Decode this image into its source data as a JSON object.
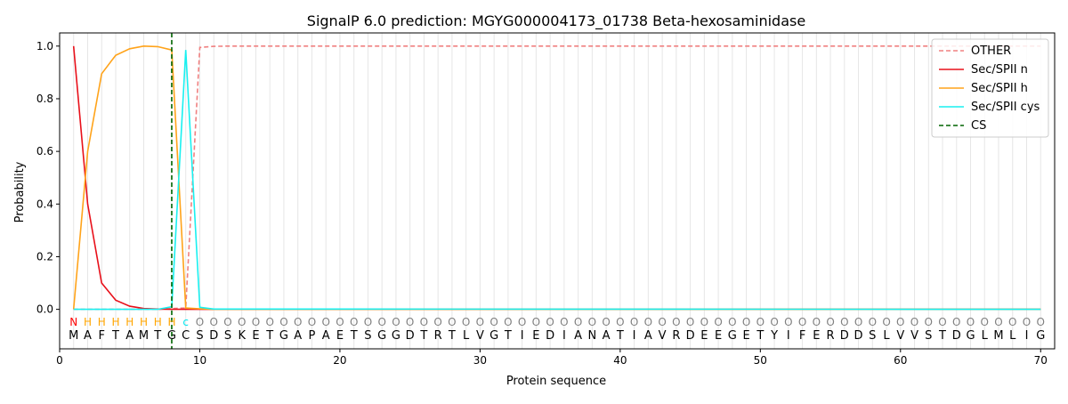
{
  "chart_data": {
    "type": "line",
    "title": "SignalP 6.0 prediction: MGYG000004173_01738 Beta-hexosaminidase",
    "xlabel": "Protein sequence",
    "ylabel": "Probability",
    "xlim": [
      0,
      71
    ],
    "ylim": [
      -0.15,
      1.05
    ],
    "xticks": [
      0,
      10,
      20,
      30,
      40,
      50,
      60,
      70
    ],
    "yticks": [
      0.0,
      0.2,
      0.4,
      0.6,
      0.8,
      1.0
    ],
    "legend_position": "top-right",
    "sequence": [
      "M",
      "A",
      "F",
      "T",
      "A",
      "M",
      "T",
      "G",
      "C",
      "S",
      "D",
      "S",
      "K",
      "E",
      "T",
      "G",
      "A",
      "P",
      "A",
      "E",
      "T",
      "S",
      "G",
      "G",
      "D",
      "T",
      "R",
      "T",
      "L",
      "V",
      "G",
      "T",
      "I",
      "E",
      "D",
      "I",
      "A",
      "N",
      "A",
      "T",
      "I",
      "A",
      "V",
      "R",
      "D",
      "E",
      "E",
      "G",
      "E",
      "T",
      "Y",
      "I",
      "F",
      "E",
      "R",
      "D",
      "D",
      "S",
      "L",
      "V",
      "V",
      "S",
      "T",
      "D",
      "G",
      "L",
      "M",
      "L",
      "I",
      "G"
    ],
    "labels": [
      "N",
      "H",
      "H",
      "H",
      "H",
      "H",
      "H",
      "H",
      "C",
      "O",
      "O",
      "O",
      "O",
      "O",
      "O",
      "O",
      "O",
      "O",
      "O",
      "O",
      "O",
      "O",
      "O",
      "O",
      "O",
      "O",
      "O",
      "O",
      "O",
      "O",
      "O",
      "O",
      "O",
      "O",
      "O",
      "O",
      "O",
      "O",
      "O",
      "O",
      "O",
      "O",
      "O",
      "O",
      "O",
      "O",
      "O",
      "O",
      "O",
      "O",
      "O",
      "O",
      "O",
      "O",
      "O",
      "O",
      "O",
      "O",
      "O",
      "O",
      "O",
      "O",
      "O",
      "O",
      "O",
      "O",
      "O",
      "O",
      "O",
      "O"
    ],
    "label_colors": {
      "N": "#ff0000",
      "H": "#ffa500",
      "C": "#00e5ee",
      "O": "#808080"
    },
    "series": [
      {
        "name": "OTHER",
        "color": "#f08080",
        "dash": true,
        "x": [
          1,
          2,
          3,
          4,
          5,
          6,
          7,
          8,
          9,
          10,
          11,
          12,
          70
        ],
        "y": [
          0,
          0,
          0,
          0,
          0,
          0,
          0,
          0.003,
          0.005,
          0.995,
          0.999,
          1.0,
          1.0
        ]
      },
      {
        "name": "Sec/SPII n",
        "color": "#e8101a",
        "dash": false,
        "x": [
          1,
          2,
          3,
          4,
          5,
          6,
          7,
          8,
          9,
          10,
          70
        ],
        "y": [
          1.0,
          0.4,
          0.1,
          0.035,
          0.012,
          0.003,
          0.001,
          0.0,
          0.0,
          0.0,
          0.0
        ]
      },
      {
        "name": "Sec/SPII h",
        "color": "#ffa31a",
        "dash": false,
        "x": [
          1,
          2,
          3,
          4,
          5,
          6,
          7,
          8,
          9,
          10,
          11,
          70
        ],
        "y": [
          0.0,
          0.6,
          0.895,
          0.965,
          0.99,
          1.0,
          0.998,
          0.985,
          0.005,
          0.002,
          0.0,
          0.0
        ]
      },
      {
        "name": "Sec/SPII cys",
        "color": "#19f0f0",
        "dash": false,
        "x": [
          1,
          2,
          3,
          4,
          5,
          6,
          7,
          8,
          9,
          10,
          11,
          70
        ],
        "y": [
          0,
          0,
          0,
          0,
          0,
          0,
          0,
          0.01,
          0.985,
          0.008,
          0.001,
          0.0
        ]
      },
      {
        "name": "CS",
        "color": "#006400",
        "dash": true,
        "vertical_x": 8
      }
    ]
  }
}
